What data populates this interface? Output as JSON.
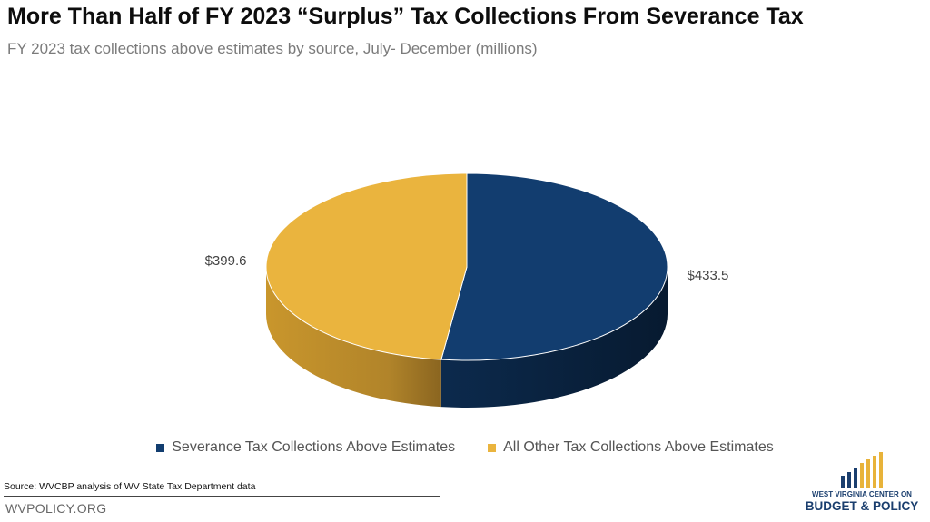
{
  "header": {
    "title": "More Than Half of FY 2023 “Surplus” Tax Collections From Severance Tax",
    "subtitle": "FY 2023 tax collections above estimates by source, July- December (millions)"
  },
  "chart_data": {
    "type": "pie",
    "style": "3d",
    "title": "More Than Half of FY 2023 “Surplus” Tax Collections From Severance Tax",
    "subtitle": "FY 2023 tax collections above estimates by source, July- December (millions)",
    "slices": [
      {
        "label": "Severance Tax Collections Above Estimates",
        "value": 433.5,
        "data_label": "$433.5",
        "color": "#123d6f"
      },
      {
        "label": "All Other Tax Collections Above Estimates",
        "value": 399.6,
        "data_label": "$399.6",
        "color": "#eab43e"
      }
    ],
    "legend_position": "bottom"
  },
  "legend": {
    "items": [
      {
        "label": "Severance Tax Collections Above Estimates",
        "color": "#123d6f"
      },
      {
        "label": "All Other Tax Collections Above Estimates",
        "color": "#eab43e"
      }
    ]
  },
  "footer": {
    "source": "Source: WVCBP analysis of WV State Tax Department data",
    "site": "WVPOLICY.ORG"
  },
  "logo": {
    "line1": "WEST VIRGINIA CENTER ON",
    "line2": "BUDGET & POLICY",
    "colors": [
      "#1a3e6e",
      "#e8b33a"
    ]
  }
}
